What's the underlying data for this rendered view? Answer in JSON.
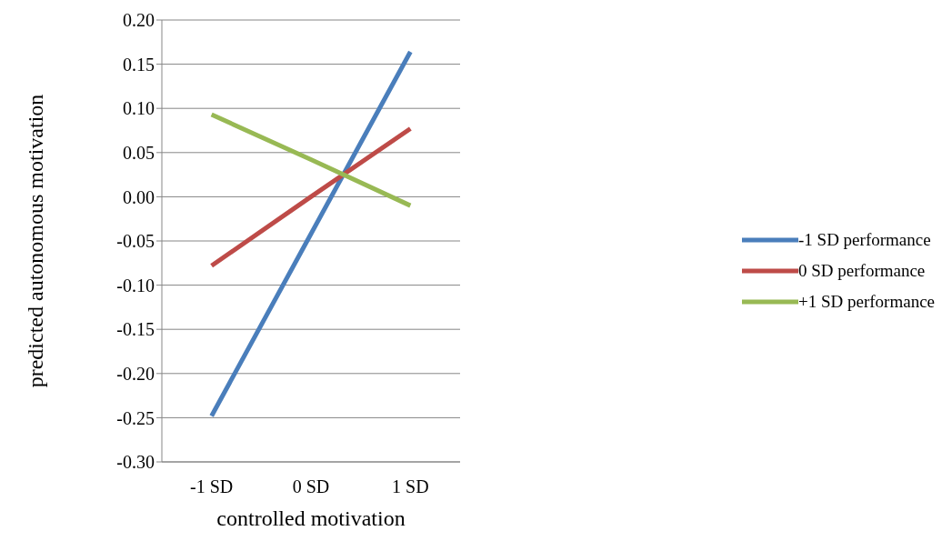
{
  "chart_data": {
    "type": "line",
    "xlabel": "controlled motivation",
    "ylabel": "predicted autonomous motivation",
    "categories": [
      "-1 SD",
      "0 SD",
      "1 SD"
    ],
    "series": [
      {
        "name": "-1 SD performance",
        "color": "#4a7ebb",
        "values": [
          -0.248,
          -0.042,
          0.164
        ]
      },
      {
        "name": "0 SD performance",
        "color": "#be4b48",
        "values": [
          -0.078,
          0.0,
          0.077
        ]
      },
      {
        "name": "+1 SD performance",
        "color": "#98b954",
        "values": [
          0.093,
          0.042,
          -0.01
        ]
      }
    ],
    "ylim": [
      -0.3,
      0.2
    ],
    "yticks": [
      {
        "value": -0.3,
        "label": "-0.30"
      },
      {
        "value": -0.25,
        "label": "-0.25"
      },
      {
        "value": -0.2,
        "label": "-0.20"
      },
      {
        "value": -0.15,
        "label": "-0.15"
      },
      {
        "value": -0.1,
        "label": "-0.10"
      },
      {
        "value": -0.05,
        "label": "-0.05"
      },
      {
        "value": 0,
        "label": "0.00"
      },
      {
        "value": 0.05,
        "label": "0.05"
      },
      {
        "value": 0.1,
        "label": "0.10"
      },
      {
        "value": 0.15,
        "label": "0.15"
      },
      {
        "value": 0.2,
        "label": "0.20"
      }
    ],
    "grid": "y",
    "legend": "right",
    "marker": "none",
    "line_style": "solid"
  }
}
